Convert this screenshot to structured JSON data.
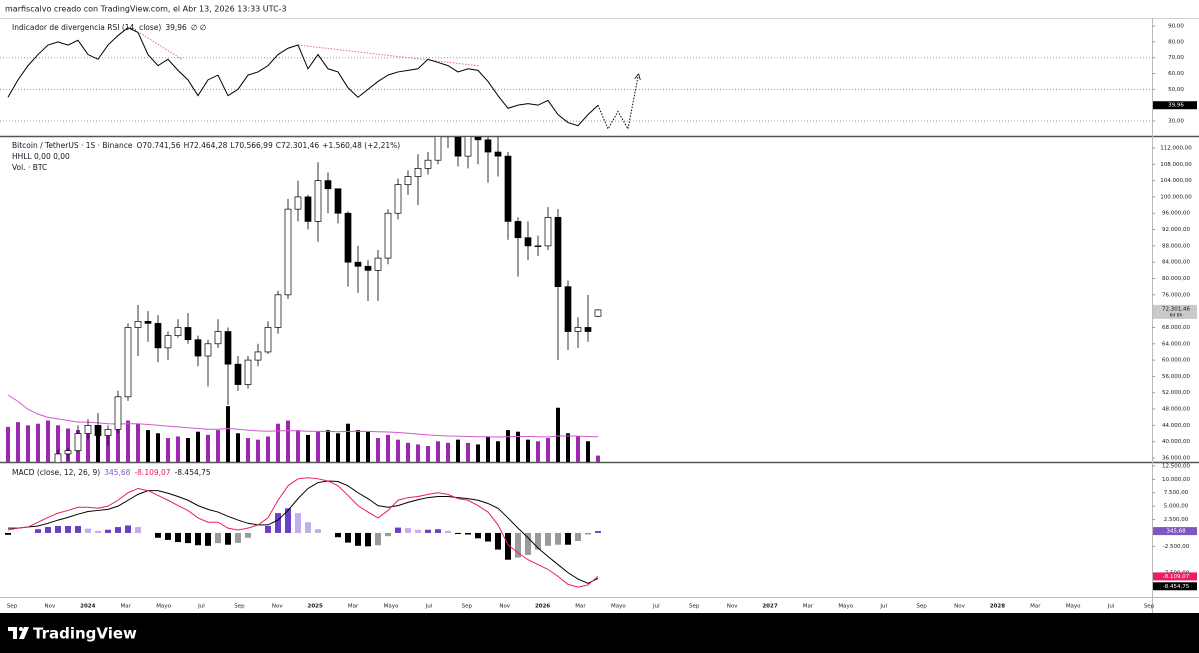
{
  "header": "marfiscalvo creado con TradingView.com, el Abr 13, 2026 13:33 UTC-3",
  "footer": "TradingView",
  "time_axis": {
    "labels": [
      "Sep",
      "Nov",
      "2024",
      "Mar",
      "Mayo",
      "Jul",
      "Sep",
      "Nov",
      "2025",
      "Mar",
      "Mayo",
      "Jul",
      "Sep",
      "Nov",
      "2026",
      "Mar",
      "Mayo",
      "Jul",
      "Sep",
      "Nov",
      "2027",
      "Mar",
      "Mayo",
      "Jul",
      "Sep",
      "Nov",
      "2028",
      "Mar",
      "Mayo",
      "Jul",
      "Sep"
    ]
  },
  "chart_data": [
    {
      "type": "line",
      "title": "Indicador de divergencia RSI (14, close)",
      "last_label": "39,96",
      "extra_labels": "∅ ∅",
      "color": "#000000",
      "level_color": "#9a9a9a",
      "divergence_color": "#e57373",
      "values": [
        45,
        56,
        65,
        72,
        78,
        80,
        78,
        81,
        72,
        69,
        78,
        84,
        89,
        86,
        72,
        65,
        69,
        62,
        56,
        46,
        56,
        59,
        46,
        50,
        59,
        61,
        65,
        72,
        76,
        78,
        63,
        72,
        63,
        61,
        51,
        45,
        50,
        55,
        59,
        61,
        62,
        63,
        69,
        67,
        65,
        61,
        63,
        62,
        55,
        46,
        38,
        40,
        41,
        40,
        43,
        34,
        29,
        27,
        34,
        39.96
      ],
      "projection": [
        25,
        36,
        25,
        58
      ],
      "levels": [
        70,
        50,
        30
      ],
      "ylim": [
        20.5,
        95.1
      ],
      "yticks": [
        {
          "value": 90,
          "label": "90,00"
        },
        {
          "value": 80,
          "label": "80,00"
        },
        {
          "value": 70,
          "label": "70,00"
        },
        {
          "value": 60,
          "label": "60,00"
        },
        {
          "value": 50,
          "label": "50,00"
        },
        {
          "value": 30,
          "label": "30,00"
        }
      ]
    },
    {
      "type": "candlestick",
      "title": "Bitcoin / TetherUS · 1S · Binance",
      "ohlc_legend": [
        "O70.741,56",
        "H72.464,28",
        "L70.566,99",
        "C72.301,46",
        "+1.560,48 (+2,21%)"
      ],
      "indicator_labels": [
        "HHLL 0,00 0,00",
        "Vol. · BTC"
      ],
      "last_label": "72.301,46",
      "countdown": "6d 8h",
      "up_color": "#ffffff",
      "down_color": "#000000",
      "volume_colors": [
        "#9c27b0",
        "#000000"
      ],
      "volume_ma_color": "#d05ad0",
      "open": [
        25800,
        26000,
        26500,
        27000,
        27500,
        34500,
        37000,
        37800,
        42000,
        44000,
        41500,
        43000,
        51000,
        68000,
        69500,
        69000,
        63000,
        66000,
        68000,
        65000,
        61000,
        64000,
        67000,
        59000,
        54000,
        60000,
        62000,
        68000,
        76000,
        97000,
        100000,
        94000,
        104000,
        102000,
        96000,
        84000,
        83000,
        82000,
        85000,
        96000,
        103000,
        105000,
        107000,
        109000,
        118000,
        118000,
        110000,
        115000,
        114000,
        111000,
        110000,
        94000,
        90000,
        88000,
        88000,
        95000,
        78000,
        67000,
        68000,
        70741.56
      ],
      "high": [
        27000,
        27500,
        28000,
        28500,
        35000,
        38000,
        38500,
        44000,
        45500,
        47000,
        44000,
        52500,
        69000,
        73500,
        72000,
        71000,
        67000,
        70000,
        71500,
        66000,
        65000,
        70000,
        68000,
        61000,
        61000,
        64000,
        69500,
        77000,
        99500,
        104000,
        100500,
        108500,
        106000,
        102000,
        96500,
        88000,
        84500,
        87000,
        97000,
        104500,
        106500,
        110500,
        111000,
        123000,
        124500,
        119000,
        117000,
        117500,
        126000,
        116000,
        111000,
        95000,
        94000,
        90500,
        97500,
        97000,
        79500,
        70500,
        76000,
        72464.28
      ],
      "low": [
        24900,
        25000,
        26000,
        26500,
        27000,
        34000,
        35500,
        37500,
        40500,
        38500,
        39000,
        42000,
        50000,
        61000,
        64500,
        59500,
        60000,
        65500,
        64000,
        58500,
        53500,
        63000,
        49000,
        52500,
        53000,
        58500,
        61500,
        66500,
        75000,
        94000,
        92000,
        89000,
        96000,
        93500,
        78000,
        76500,
        74500,
        74500,
        83500,
        94500,
        100500,
        98000,
        105500,
        108000,
        112000,
        107500,
        107000,
        108000,
        103500,
        105000,
        89500,
        80500,
        84500,
        85500,
        87000,
        60000,
        62500,
        63000,
        64500,
        70566.99
      ],
      "close": [
        26000,
        26500,
        27000,
        27500,
        34500,
        37000,
        37800,
        42000,
        44000,
        41500,
        43000,
        51000,
        68000,
        69500,
        69000,
        63000,
        66000,
        68000,
        65000,
        61000,
        64000,
        67000,
        59000,
        54000,
        60000,
        62000,
        68000,
        76000,
        97000,
        100000,
        94000,
        104000,
        102000,
        96000,
        84000,
        83000,
        82000,
        85000,
        96000,
        103000,
        105000,
        107000,
        109000,
        118000,
        118000,
        110000,
        115000,
        114000,
        111000,
        110000,
        94000,
        90000,
        88000,
        88000,
        95000,
        78000,
        67000,
        68000,
        67000,
        72301.46
      ],
      "volume": [
        220,
        250,
        230,
        240,
        260,
        230,
        210,
        200,
        230,
        210,
        190,
        220,
        260,
        240,
        200,
        180,
        150,
        160,
        150,
        190,
        170,
        200,
        350,
        180,
        150,
        140,
        160,
        240,
        260,
        200,
        170,
        190,
        200,
        180,
        240,
        200,
        190,
        150,
        170,
        140,
        120,
        110,
        100,
        130,
        120,
        140,
        120,
        110,
        160,
        130,
        200,
        190,
        140,
        130,
        150,
        340,
        180,
        160,
        130,
        40
      ],
      "volume_ma": [
        420,
        380,
        330,
        300,
        280,
        270,
        260,
        250,
        250,
        245,
        240,
        238,
        240,
        240,
        235,
        230,
        225,
        220,
        215,
        210,
        205,
        205,
        210,
        205,
        200,
        195,
        193,
        195,
        197,
        195,
        193,
        192,
        192,
        190,
        192,
        193,
        192,
        190,
        188,
        185,
        180,
        175,
        170,
        166,
        163,
        162,
        160,
        158,
        158,
        157,
        158,
        160,
        160,
        158,
        157,
        163,
        163,
        162,
        160,
        158
      ],
      "ylim": [
        35021,
        114688
      ],
      "yticks": [
        {
          "value": 36000,
          "label": "36.000,00"
        },
        {
          "value": 40000,
          "label": "40.000,00"
        },
        {
          "value": 44000,
          "label": "44.000,00"
        },
        {
          "value": 48000,
          "label": "48.000,00"
        },
        {
          "value": 52000,
          "label": "52.000,00"
        },
        {
          "value": 56000,
          "label": "56.000,00"
        },
        {
          "value": 60000,
          "label": "60.000,00"
        },
        {
          "value": 64000,
          "label": "64.000,00"
        },
        {
          "value": 68000,
          "label": "68.000,00"
        },
        {
          "value": 76000,
          "label": "76.000,00"
        },
        {
          "value": 80000,
          "label": "80.000,00"
        },
        {
          "value": 84000,
          "label": "84.000,00"
        },
        {
          "value": 88000,
          "label": "88.000,00"
        },
        {
          "value": 92000,
          "label": "92.000,00"
        },
        {
          "value": 96000,
          "label": "96.000,00"
        },
        {
          "value": 100000,
          "label": "100.000,00"
        },
        {
          "value": 104000,
          "label": "104.000,00"
        },
        {
          "value": 108000,
          "label": "108.000,00"
        },
        {
          "value": 112000,
          "label": "112.000,00"
        }
      ]
    },
    {
      "type": "macd",
      "title": "MACD (close, 12, 26, 9)",
      "value_labels": [
        "345,68",
        "-8.109,07",
        "-8.454,75"
      ],
      "colors": {
        "histogram": "#7e57c2",
        "macd": "#e91e63",
        "signal": "#000000"
      },
      "histogram_colors": [
        "#6a3fc4",
        "#c2aeea",
        "#000000",
        "#9a9a9a"
      ],
      "histogram": [
        -350,
        0,
        0,
        700,
        1100,
        1300,
        1300,
        1300,
        800,
        400,
        600,
        1100,
        1400,
        1100,
        0,
        -900,
        -1300,
        -1700,
        -1900,
        -2300,
        -2400,
        -1900,
        -2200,
        -1850,
        -900,
        0,
        1300,
        3700,
        4600,
        3700,
        2000,
        700,
        0,
        -800,
        -1800,
        -2400,
        -2500,
        -2300,
        -600,
        1000,
        900,
        600,
        600,
        700,
        400,
        -200,
        -300,
        -1000,
        -1600,
        -3100,
        -5000,
        -4600,
        -4100,
        -3100,
        -2400,
        -2200,
        -2200,
        -1500,
        -300,
        345.68
      ],
      "macd": [
        550,
        900,
        1100,
        2000,
        2900,
        3700,
        4200,
        4800,
        4800,
        4600,
        5000,
        6100,
        7500,
        8300,
        7900,
        7000,
        6100,
        5100,
        4200,
        2800,
        2000,
        2000,
        900,
        550,
        900,
        1500,
        2800,
        6100,
        8800,
        10100,
        10300,
        10100,
        9700,
        8800,
        7000,
        5100,
        3900,
        2800,
        4200,
        6100,
        6600,
        6800,
        7200,
        7500,
        7200,
        6400,
        6100,
        5100,
        3900,
        1500,
        -2200,
        -3700,
        -5000,
        -5900,
        -6800,
        -8100,
        -9600,
        -10100,
        -9700,
        -8109.07
      ],
      "signal": [
        900,
        900,
        1100,
        1300,
        1800,
        2400,
        2900,
        3500,
        4000,
        4200,
        4400,
        5000,
        6100,
        7200,
        7900,
        7900,
        7400,
        6800,
        6100,
        5100,
        4400,
        3900,
        3100,
        2400,
        1800,
        1500,
        1500,
        2400,
        4200,
        6400,
        8300,
        9400,
        9700,
        9600,
        8800,
        7500,
        6400,
        5100,
        4800,
        5100,
        5700,
        6200,
        6600,
        6800,
        6800,
        6600,
        6400,
        6100,
        5500,
        4600,
        2800,
        900,
        -900,
        -2800,
        -4400,
        -5900,
        -7400,
        -8600,
        -9400,
        -8454.75
      ],
      "ylim": [
        -11950,
        13050
      ],
      "yticks": [
        {
          "value": 12500,
          "label": "12.500,00"
        },
        {
          "value": 10000,
          "label": "10.000,00"
        },
        {
          "value": 7500,
          "label": "7.500,00"
        },
        {
          "value": 5000,
          "label": "5.000,00"
        },
        {
          "value": 2500,
          "label": "2.500,00"
        },
        {
          "value": -2500,
          "label": "-2.500,00"
        },
        {
          "value": -7500,
          "label": "-7.500,00"
        }
      ]
    }
  ]
}
